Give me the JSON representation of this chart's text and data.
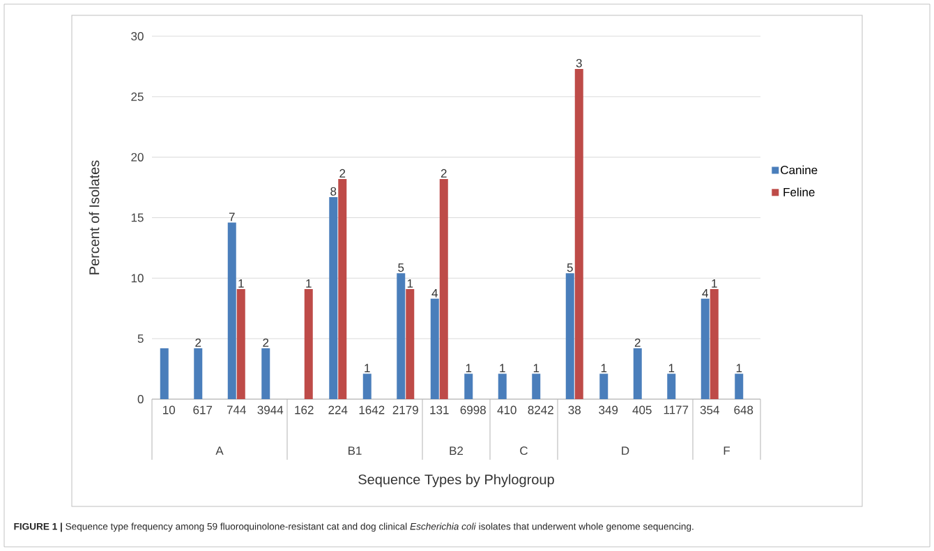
{
  "chart_data": {
    "type": "bar",
    "xlabel": "Sequence Types by Phylogroup",
    "ylabel": "Percent of Isolates",
    "categories": [
      "10",
      "617",
      "744",
      "3944",
      "162",
      "224",
      "1642",
      "2179",
      "131",
      "6998",
      "410",
      "8242",
      "38",
      "349",
      "405",
      "1177",
      "354",
      "648"
    ],
    "series": [
      {
        "name": "Canine",
        "color": "#4a7ebb",
        "values": [
          4.2,
          4.2,
          14.6,
          4.2,
          null,
          16.7,
          2.1,
          10.4,
          8.3,
          2.1,
          2.1,
          2.1,
          10.4,
          2.1,
          4.2,
          2.1,
          8.3,
          2.1
        ]
      },
      {
        "name": "Feline",
        "color": "#be4b48",
        "values": [
          null,
          null,
          9.1,
          null,
          9.1,
          18.2,
          null,
          9.1,
          18.2,
          null,
          null,
          null,
          27.3,
          null,
          null,
          null,
          9.1,
          null
        ]
      }
    ],
    "ylim": [
      0,
      30
    ],
    "yticks": [
      0,
      5,
      10,
      15,
      20,
      25,
      30
    ],
    "grid": "y",
    "legend": "right",
    "annotations": [
      "A",
      "B1",
      "B2",
      "C",
      "D",
      "F",
      {
        "text": "2",
        "x": "617",
        "y": 4.2
      },
      {
        "text": "7",
        "x": "744",
        "y": 14.6
      },
      {
        "text": "1",
        "x": "744",
        "y": 9.1
      },
      {
        "text": "2",
        "x": "3944",
        "y": 4.2
      },
      {
        "text": "1",
        "x": "162",
        "y": 9.1
      },
      {
        "text": "8",
        "x": "224",
        "y": 16.7
      },
      {
        "text": "2",
        "x": "224",
        "y": 18.2
      },
      {
        "text": "1",
        "x": "1642",
        "y": 2.1
      },
      {
        "text": "5",
        "x": "2179",
        "y": 10.4
      },
      {
        "text": "1",
        "x": "2179",
        "y": 9.1
      },
      {
        "text": "4",
        "x": "131",
        "y": 8.3
      },
      {
        "text": "2",
        "x": "131",
        "y": 18.2
      },
      {
        "text": "1",
        "x": "6998",
        "y": 2.1
      },
      {
        "text": "1",
        "x": "410",
        "y": 2.1
      },
      {
        "text": "1",
        "x": "8242",
        "y": 2.1
      },
      {
        "text": "5",
        "x": "38",
        "y": 10.4
      },
      {
        "text": "3",
        "x": "38",
        "y": 27.3
      },
      {
        "text": "1",
        "x": "349",
        "y": 2.1
      },
      {
        "text": "2",
        "x": "405",
        "y": 4.2
      },
      {
        "text": "1",
        "x": "1177",
        "y": 2.1
      },
      {
        "text": "4",
        "x": "354",
        "y": 8.3
      },
      {
        "text": "1",
        "x": "354",
        "y": 9.1
      },
      {
        "text": "1",
        "x": "648",
        "y": 2.1
      },
      "**FIGURE 1 |** Sequence type frequency among 59 fluoroquinolone-resistant cat and dog clinical *Escherichia coli* isolates that underwent whole genome sequencing."
    ]
  }
}
